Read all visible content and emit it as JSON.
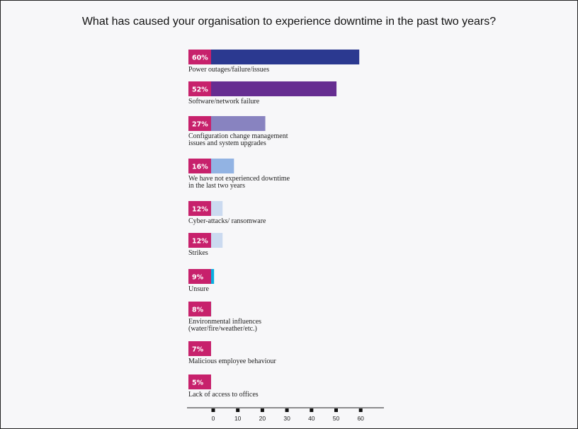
{
  "chart_data": {
    "type": "bar",
    "orientation": "horizontal",
    "title": "What has caused your organisation to experience downtime in the past two years?",
    "categories": [
      [
        "Power outages/failure/issues"
      ],
      [
        "Software/network failure"
      ],
      [
        "Configuration change management",
        "issues and system upgrades"
      ],
      [
        "We have not experienced downtime",
        "in the last two years"
      ],
      [
        "Cyber-attacks/ ransomware"
      ],
      [
        "Strikes"
      ],
      [
        "Unsure"
      ],
      [
        "Environmental influences",
        "(water/fire/weather/etc.)"
      ],
      [
        "Malicious employee behaviour"
      ],
      [
        "Lack of access to offices"
      ]
    ],
    "values": [
      60,
      52,
      27,
      16,
      12,
      12,
      9,
      8,
      7,
      5
    ],
    "value_labels": [
      "60%",
      "52%",
      "27%",
      "16%",
      "12%",
      "12%",
      "9%",
      "8%",
      "7%",
      "5%"
    ],
    "colors": [
      "#2b3990",
      "#662d91",
      "#8883c0",
      "#92b3e3",
      "#cbdaf0",
      "#cbdaf0",
      "#09aee0",
      "#6ccbc0",
      "#b6d32e",
      "#fbb62f"
    ],
    "badge_color": "#c7216c",
    "xticks": [
      0,
      10,
      20,
      30,
      40,
      50,
      60
    ],
    "xlim": [
      0,
      70
    ],
    "grid": false,
    "legend": "none"
  }
}
